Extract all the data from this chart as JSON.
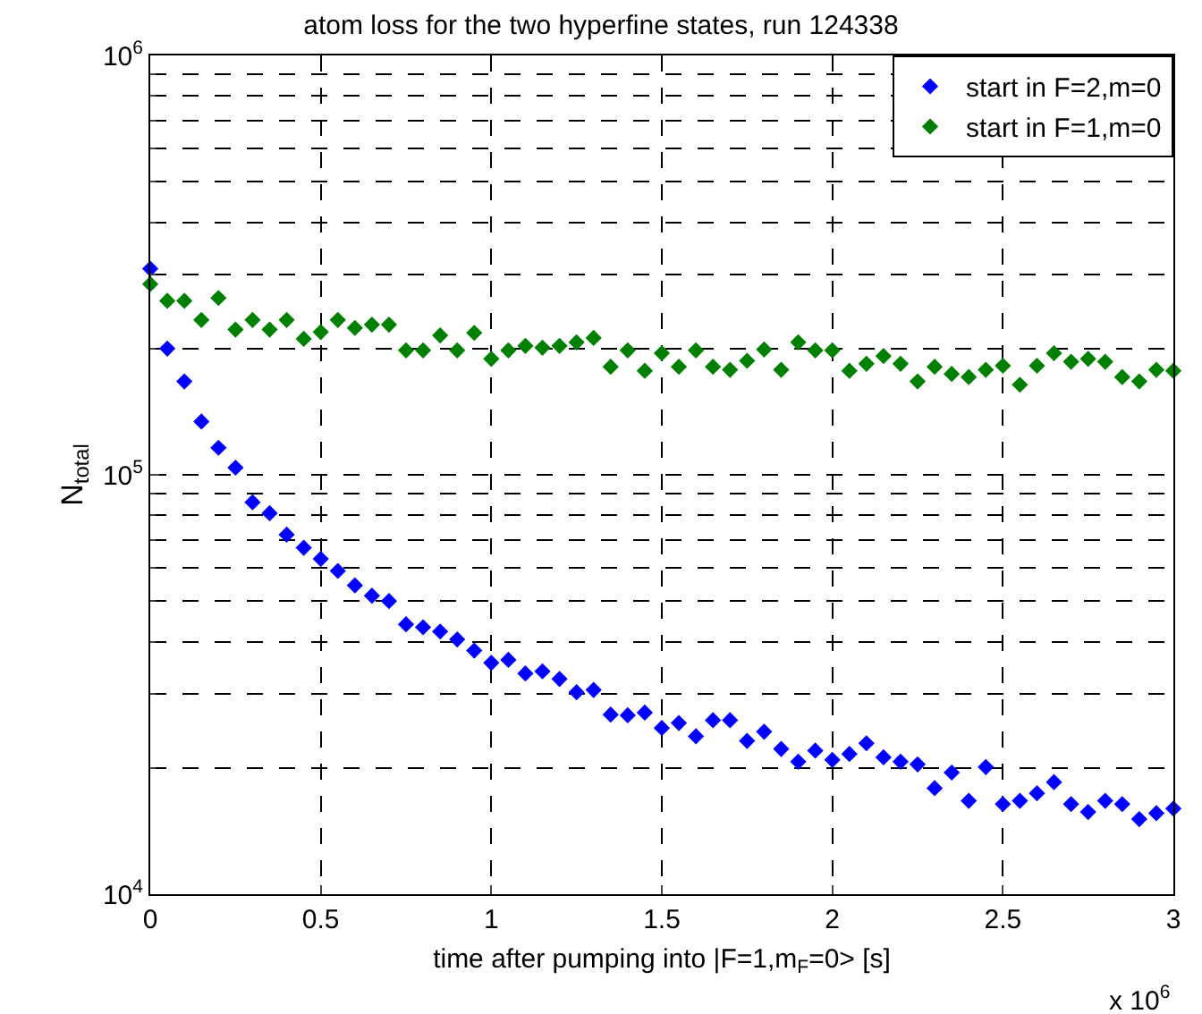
{
  "chart_data": {
    "type": "scatter",
    "title": "atom loss for the two hyperfine states, run 124338",
    "xlabel": "time after pumping into |F=1,m$_{F}$=0> [s]",
    "ylabel": "N$_{total}$",
    "annotations": [
      "x 10$^{6}$"
    ],
    "x": [
      0,
      0.05,
      0.1,
      0.15,
      0.2,
      0.25,
      0.3,
      0.35,
      0.4,
      0.45,
      0.5,
      0.55,
      0.6,
      0.65,
      0.7,
      0.75,
      0.8,
      0.85,
      0.9,
      0.95,
      1.0,
      1.05,
      1.1,
      1.15,
      1.2,
      1.25,
      1.3,
      1.35,
      1.4,
      1.45,
      1.5,
      1.55,
      1.6,
      1.65,
      1.7,
      1.75,
      1.8,
      1.85,
      1.9,
      1.95,
      2.0,
      2.05,
      2.1,
      2.15,
      2.2,
      2.25,
      2.3,
      2.35,
      2.4,
      2.45,
      2.5,
      2.55,
      2.6,
      2.65,
      2.7,
      2.75,
      2.8,
      2.85,
      2.9,
      2.95,
      3.0
    ],
    "series": [
      {
        "name": "start in F=2,m=0",
        "color": "#0000ff",
        "values": [
          310000,
          200000,
          167000,
          134000,
          116000,
          104000,
          86000,
          81000,
          72000,
          67000,
          63000,
          59000,
          54500,
          51500,
          50000,
          44000,
          43300,
          42300,
          40500,
          38100,
          35600,
          36200,
          33600,
          34000,
          32600,
          30300,
          30700,
          26800,
          26700,
          27100,
          24900,
          25600,
          23800,
          26000,
          26000,
          23200,
          24400,
          22200,
          20700,
          22000,
          20900,
          21600,
          22900,
          21200,
          20700,
          20400,
          17900,
          19500,
          16700,
          20100,
          16400,
          16700,
          17400,
          18500,
          16400,
          15700,
          16700,
          16400,
          15100,
          15600,
          16000
        ]
      },
      {
        "name": "start in F=1,m=0",
        "color": "#008000",
        "values": [
          285000,
          260000,
          260000,
          234000,
          264000,
          222000,
          234000,
          222000,
          234000,
          211000,
          219000,
          234000,
          224000,
          228000,
          228000,
          198000,
          198000,
          215000,
          198000,
          218000,
          189000,
          198000,
          203000,
          201000,
          203000,
          207000,
          212000,
          181000,
          198000,
          177000,
          195000,
          181000,
          198000,
          181000,
          178000,
          187000,
          199000,
          178000,
          207000,
          198000,
          198000,
          177000,
          184000,
          192000,
          184000,
          167000,
          181000,
          174000,
          171000,
          178000,
          182000,
          164000,
          182000,
          195000,
          186000,
          189000,
          186000,
          171000,
          167000,
          178000,
          177000
        ]
      }
    ],
    "xlim": [
      0,
      3
    ],
    "xticks": [
      0,
      0.5,
      1,
      1.5,
      2,
      2.5,
      3
    ],
    "ylim": [
      10000,
      1000000
    ],
    "yticks": [
      {
        "value": 10000,
        "label": "10$^{4}$"
      },
      {
        "value": 100000,
        "label": "10$^{5}$"
      },
      {
        "value": 1000000,
        "label": "10$^{6}$"
      }
    ],
    "log": "y",
    "grid": true,
    "legend": "top right",
    "marker": "diamond"
  }
}
